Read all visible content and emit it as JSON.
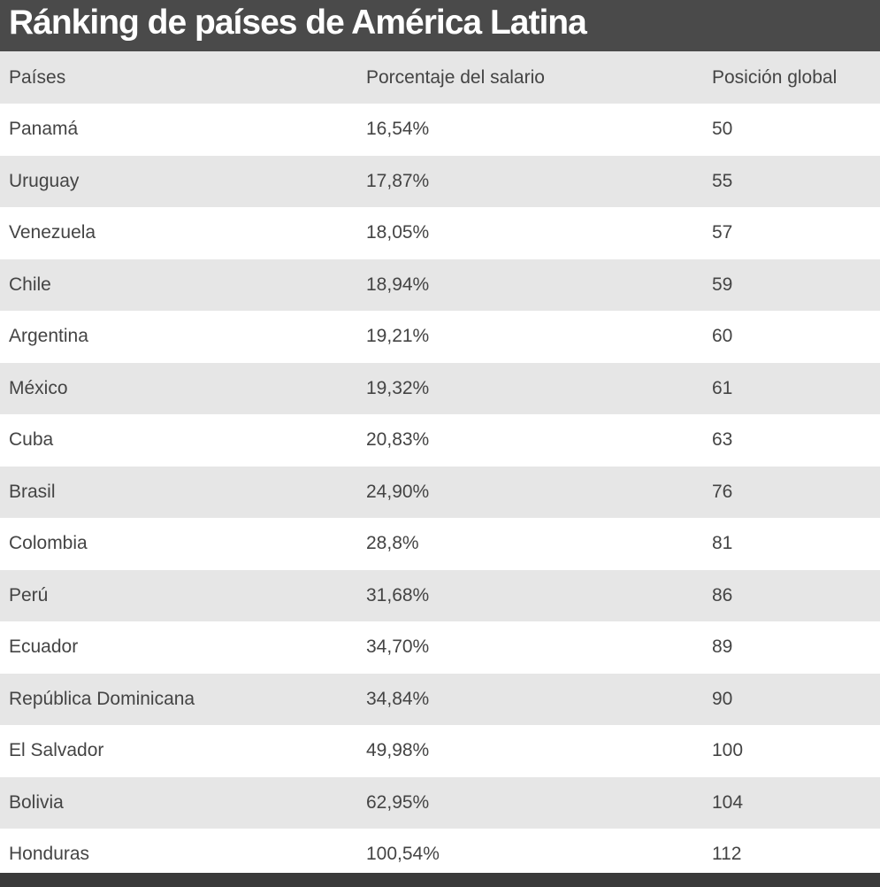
{
  "title": "Ránking de países de América Latina",
  "chart_data": {
    "type": "table",
    "title": "Ránking de países de América Latina",
    "columns": [
      "Países",
      "Porcentaje del salario",
      "Posición global"
    ],
    "rows": [
      [
        "Panamá",
        "16,54%",
        "50"
      ],
      [
        "Uruguay",
        "17,87%",
        "55"
      ],
      [
        "Venezuela",
        "18,05%",
        "57"
      ],
      [
        "Chile",
        "18,94%",
        "59"
      ],
      [
        "Argentina",
        "19,21%",
        "60"
      ],
      [
        "México",
        "19,32%",
        "61"
      ],
      [
        "Cuba",
        "20,83%",
        "63"
      ],
      [
        "Brasil",
        "24,90%",
        "76"
      ],
      [
        "Colombia",
        "28,8%",
        "81"
      ],
      [
        "Perú",
        "31,68%",
        "86"
      ],
      [
        "Ecuador",
        "34,70%",
        "89"
      ],
      [
        "República Dominicana",
        "34,84%",
        "90"
      ],
      [
        "El Salvador",
        "49,98%",
        "100"
      ],
      [
        "Bolivia",
        "62,95%",
        "104"
      ],
      [
        "Honduras",
        "100,54%",
        "112"
      ]
    ]
  },
  "colors": {
    "title_bar": "#4a4a4a",
    "stripe": "#e6e6e6",
    "text": "#444444"
  }
}
